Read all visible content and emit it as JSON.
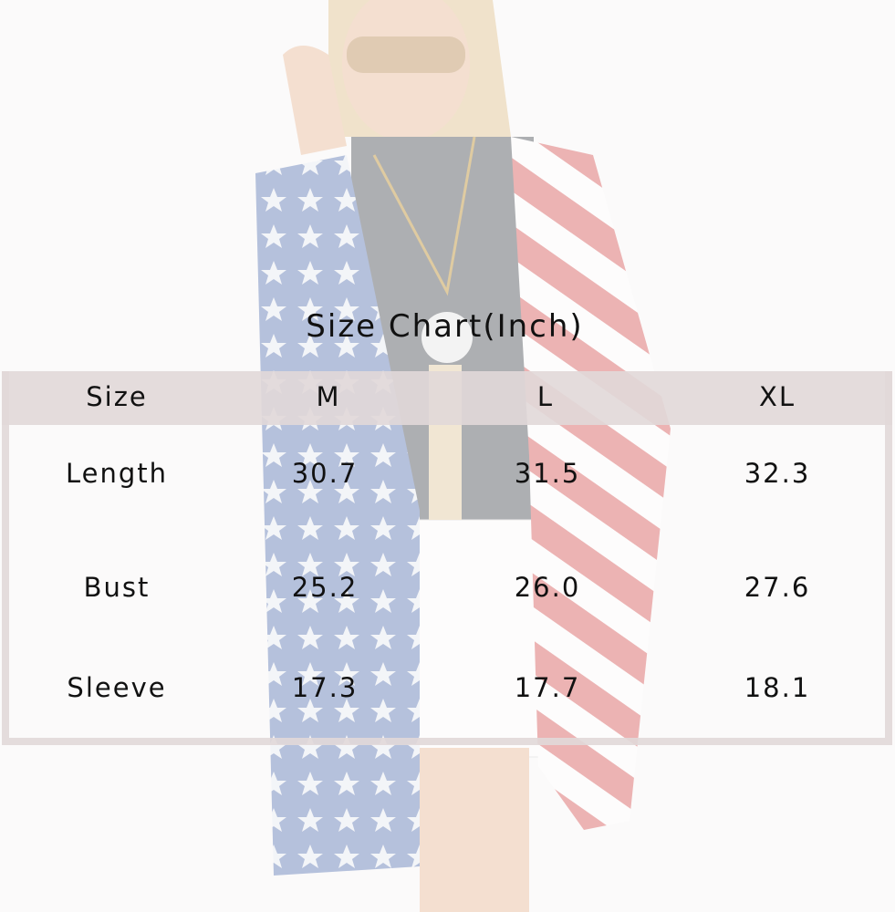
{
  "title": "Size  Chart(Inch)",
  "colors": {
    "header_band": "#e1d8d8",
    "text": "#111111"
  },
  "table": {
    "headers": [
      "Size",
      "M",
      "L",
      "XL"
    ],
    "rows": [
      {
        "label": "Length",
        "values": [
          "30.7",
          "31.5",
          "32.3"
        ]
      },
      {
        "label": "Bust",
        "values": [
          "25.2",
          "26.0",
          "27.6"
        ]
      },
      {
        "label": "Sleeve",
        "values": [
          "17.3",
          "17.7",
          "18.1"
        ]
      }
    ]
  }
}
